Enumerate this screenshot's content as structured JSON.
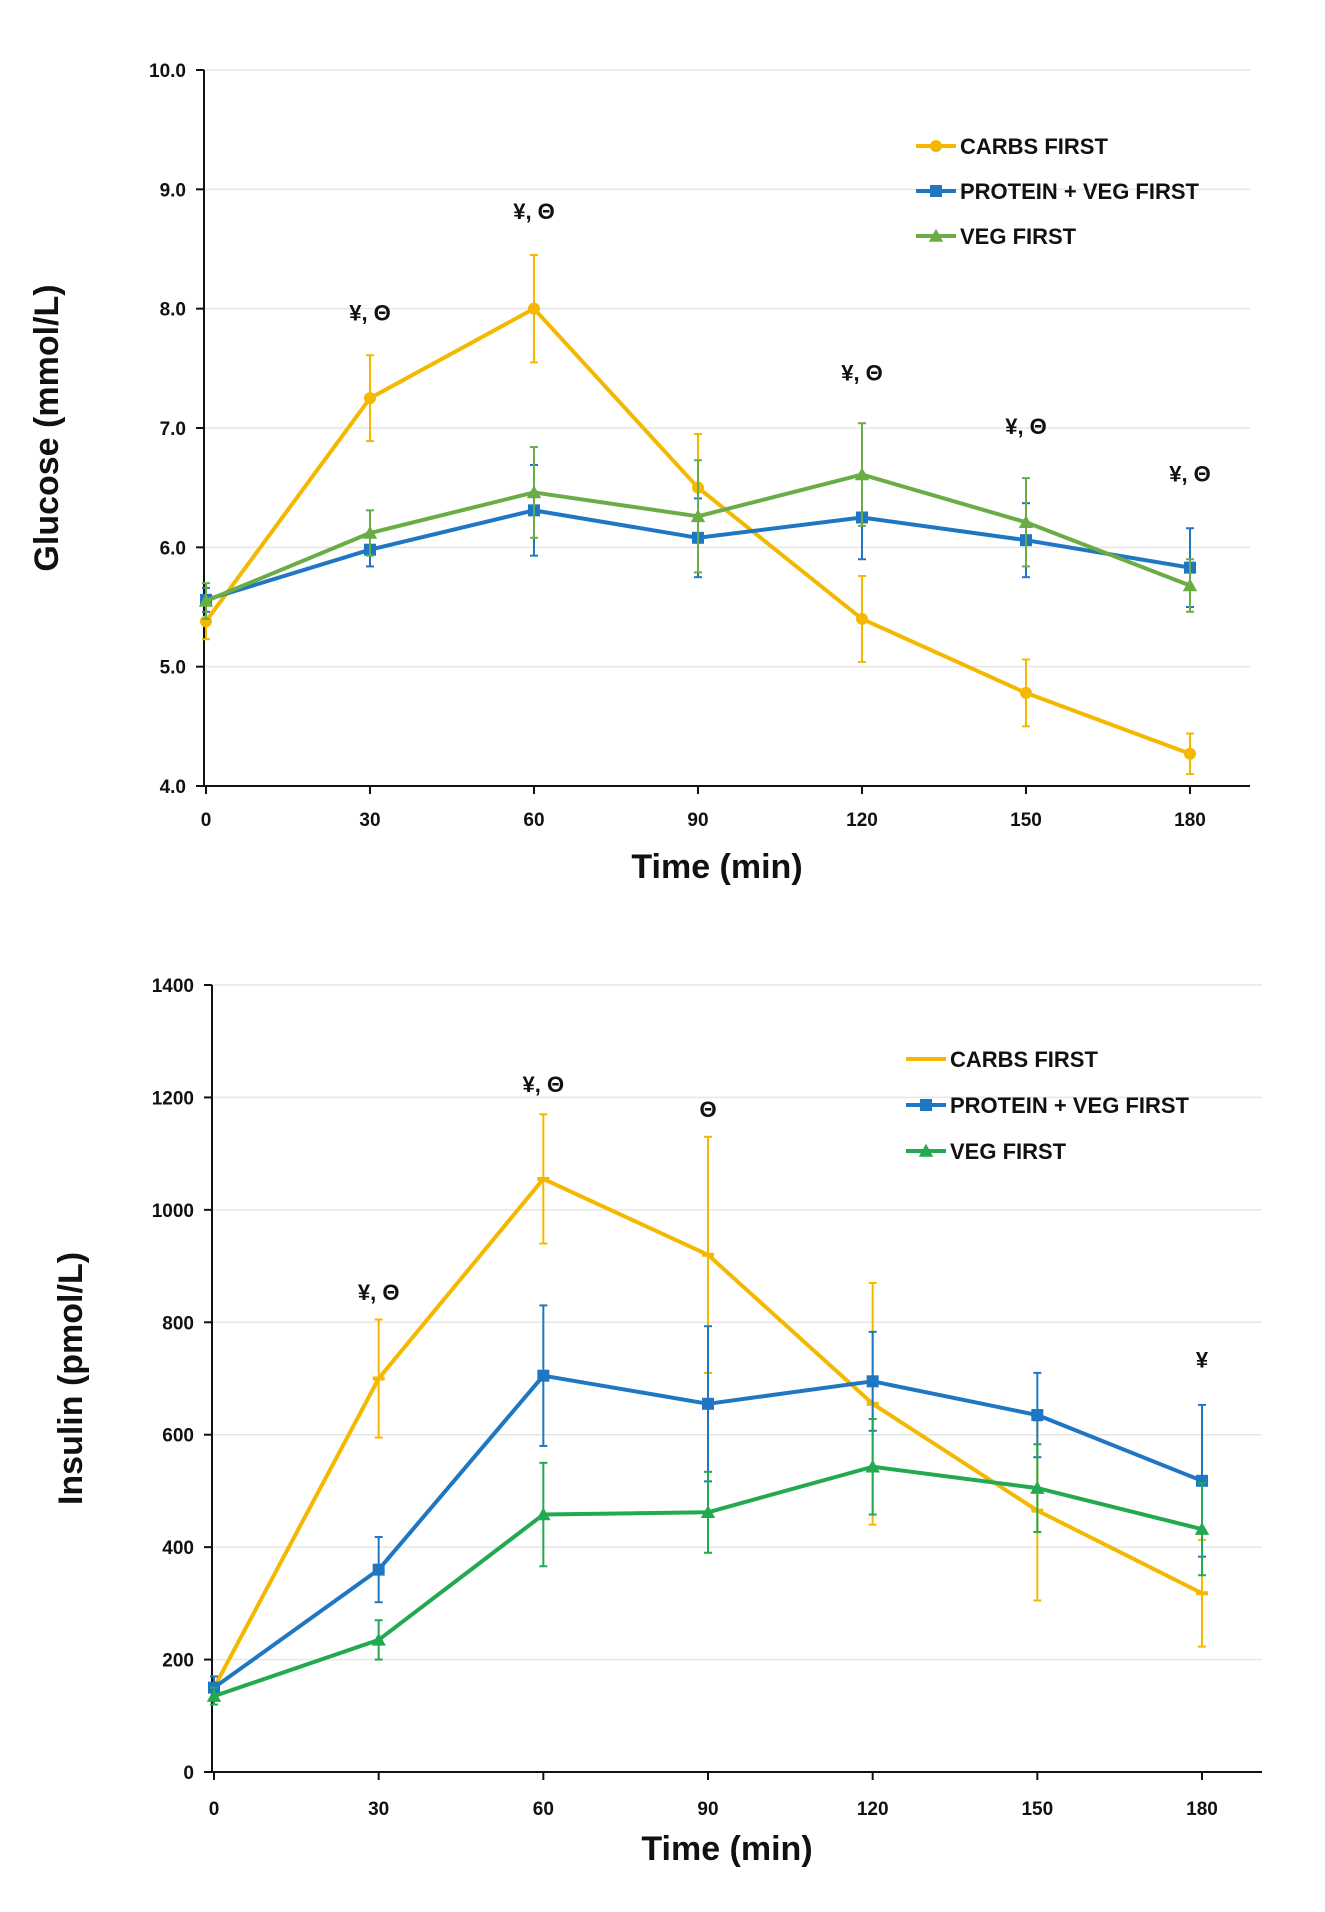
{
  "chart_data": [
    {
      "type": "line",
      "xlabel": "Time (min)",
      "ylabel": "Glucose (mmol/L)",
      "x": [
        0,
        30,
        60,
        90,
        120,
        150,
        180
      ],
      "xticks": [
        "0",
        "30",
        "60",
        "90",
        "120",
        "150",
        "180"
      ],
      "ylim": [
        4.0,
        10.0
      ],
      "yticks": [
        "4.0",
        "5.0",
        "6.0",
        "7.0",
        "8.0",
        "9.0",
        "10.0"
      ],
      "grid": true,
      "legend_position": "top-right",
      "series": [
        {
          "name": "CARBS FIRST",
          "color": "#f5b800",
          "marker": "circle",
          "values": [
            5.38,
            7.25,
            8.0,
            6.5,
            5.4,
            4.78,
            4.27
          ],
          "errors": [
            0.15,
            0.36,
            0.45,
            0.45,
            0.36,
            0.28,
            0.17
          ]
        },
        {
          "name": "PROTEIN + VEG FIRST",
          "color": "#1f77c4",
          "marker": "square",
          "values": [
            5.56,
            5.98,
            6.31,
            6.08,
            6.25,
            6.06,
            5.83
          ],
          "errors": [
            0.1,
            0.14,
            0.38,
            0.33,
            0.35,
            0.31,
            0.33
          ]
        },
        {
          "name": "VEG FIRST",
          "color": "#6aac46",
          "marker": "triangle",
          "values": [
            5.55,
            6.12,
            6.46,
            6.26,
            6.61,
            6.21,
            5.68
          ],
          "errors": [
            0.15,
            0.19,
            0.38,
            0.47,
            0.43,
            0.37,
            0.22
          ]
        }
      ],
      "annotations": [
        {
          "x": 30,
          "text": "¥, Θ",
          "y": 7.9
        },
        {
          "x": 60,
          "text": "¥, Θ",
          "y": 8.75
        },
        {
          "x": 120,
          "text": "¥, Θ",
          "y": 7.4
        },
        {
          "x": 150,
          "text": "¥, Θ",
          "y": 6.95
        },
        {
          "x": 180,
          "text": "¥, Θ",
          "y": 6.55
        }
      ]
    },
    {
      "type": "line",
      "xlabel": "Time (min)",
      "ylabel": "Insulin (pmol/L)",
      "x": [
        0,
        30,
        60,
        90,
        120,
        150,
        180
      ],
      "xticks": [
        "0",
        "30",
        "60",
        "90",
        "120",
        "150",
        "180"
      ],
      "ylim": [
        0,
        1400
      ],
      "yticks": [
        "0",
        "200",
        "400",
        "600",
        "800",
        "1000",
        "1200",
        "1400"
      ],
      "grid": true,
      "legend_position": "top-right",
      "series": [
        {
          "name": "CARBS FIRST",
          "color": "#f5b800",
          "marker": "dash",
          "values": [
            150,
            700,
            1055,
            920,
            655,
            465,
            318
          ],
          "errors": [
            20,
            105,
            115,
            210,
            215,
            160,
            95
          ]
        },
        {
          "name": "PROTEIN + VEG FIRST",
          "color": "#1f77c4",
          "marker": "square",
          "values": [
            150,
            360,
            705,
            655,
            695,
            635,
            518
          ],
          "errors": [
            20,
            58,
            125,
            138,
            88,
            75,
            135
          ]
        },
        {
          "name": "VEG FIRST",
          "color": "#23a94f",
          "marker": "triangle",
          "values": [
            135,
            235,
            458,
            462,
            543,
            505,
            432
          ],
          "errors": [
            15,
            35,
            92,
            72,
            85,
            78,
            82
          ]
        }
      ],
      "annotations": [
        {
          "x": 30,
          "text": "¥, Θ",
          "y": 840
        },
        {
          "x": 60,
          "text": "¥, Θ",
          "y": 1210
        },
        {
          "x": 90,
          "text": "Θ",
          "y": 1165
        },
        {
          "x": 180,
          "text": "¥",
          "y": 720
        }
      ]
    }
  ]
}
